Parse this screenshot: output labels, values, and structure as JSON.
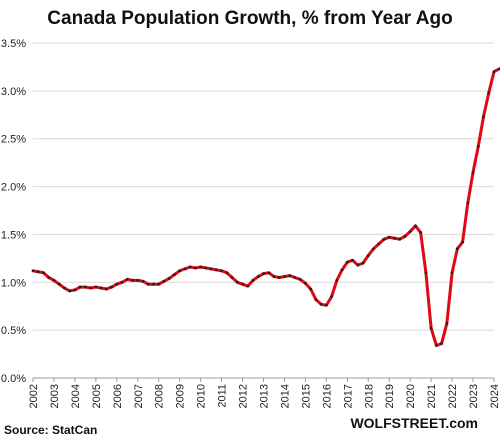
{
  "chart_data": {
    "type": "line",
    "title": "Canada Population Growth, % from Year Ago",
    "source": "Source: StatCan",
    "watermark": "WOLFSTREET.com",
    "x": [
      2002,
      2002.25,
      2002.5,
      2002.75,
      2003,
      2003.25,
      2003.5,
      2003.75,
      2004,
      2004.25,
      2004.5,
      2004.75,
      2005,
      2005.25,
      2005.5,
      2005.75,
      2006,
      2006.25,
      2006.5,
      2006.75,
      2007,
      2007.25,
      2007.5,
      2007.75,
      2008,
      2008.25,
      2008.5,
      2008.75,
      2009,
      2009.25,
      2009.5,
      2009.75,
      2010,
      2010.25,
      2010.5,
      2010.75,
      2011,
      2011.25,
      2011.5,
      2011.75,
      2012,
      2012.25,
      2012.5,
      2012.75,
      2013,
      2013.25,
      2013.5,
      2013.75,
      2014,
      2014.25,
      2014.5,
      2014.75,
      2015,
      2015.25,
      2015.5,
      2015.75,
      2016,
      2016.25,
      2016.5,
      2016.75,
      2017,
      2017.25,
      2017.5,
      2017.75,
      2018,
      2018.25,
      2018.5,
      2018.75,
      2019,
      2019.25,
      2019.5,
      2019.75,
      2020,
      2020.25,
      2020.5,
      2020.75,
      2021,
      2021.25,
      2021.5,
      2021.75,
      2022,
      2022.25,
      2022.5,
      2022.75,
      2023,
      2023.25,
      2023.5,
      2023.75,
      2024,
      2024.25
    ],
    "series": [
      {
        "name": "Population growth",
        "color": "#e30613",
        "marker_color": "#222222",
        "values": [
          1.12,
          1.11,
          1.1,
          1.05,
          1.02,
          0.98,
          0.94,
          0.91,
          0.92,
          0.95,
          0.95,
          0.94,
          0.95,
          0.94,
          0.93,
          0.95,
          0.98,
          1.0,
          1.03,
          1.02,
          1.02,
          1.01,
          0.98,
          0.98,
          0.98,
          1.01,
          1.04,
          1.08,
          1.12,
          1.14,
          1.16,
          1.15,
          1.16,
          1.15,
          1.14,
          1.13,
          1.12,
          1.1,
          1.05,
          1.0,
          0.98,
          0.96,
          1.02,
          1.06,
          1.09,
          1.1,
          1.06,
          1.05,
          1.06,
          1.07,
          1.05,
          1.03,
          0.99,
          0.93,
          0.82,
          0.77,
          0.76,
          0.85,
          1.02,
          1.13,
          1.21,
          1.23,
          1.18,
          1.2,
          1.28,
          1.35,
          1.4,
          1.45,
          1.47,
          1.46,
          1.45,
          1.48,
          1.53,
          1.59,
          1.52,
          1.1,
          0.52,
          0.34,
          0.36,
          0.57,
          1.1,
          1.35,
          1.42,
          1.83,
          2.15,
          2.42,
          2.73,
          2.98,
          3.2,
          3.23
        ]
      }
    ],
    "xlim": [
      2002,
      2024.25
    ],
    "xticks": [
      2002,
      2003,
      2004,
      2005,
      2006,
      2007,
      2008,
      2009,
      2010,
      2011,
      2012,
      2013,
      2014,
      2015,
      2016,
      2017,
      2018,
      2019,
      2020,
      2021,
      2022,
      2023,
      2024
    ],
    "ylim": [
      0,
      3.5
    ],
    "yticks": [
      {
        "value": 0,
        "label": "0.0%"
      },
      {
        "value": 0.5,
        "label": "0.5%"
      },
      {
        "value": 1,
        "label": "1.0%"
      },
      {
        "value": 1.5,
        "label": "1.5%"
      },
      {
        "value": 2,
        "label": "2.0%"
      },
      {
        "value": 2.5,
        "label": "2.5%"
      },
      {
        "value": 3,
        "label": "3.0%"
      },
      {
        "value": 3.5,
        "label": "3.5%"
      }
    ],
    "grid": true
  }
}
